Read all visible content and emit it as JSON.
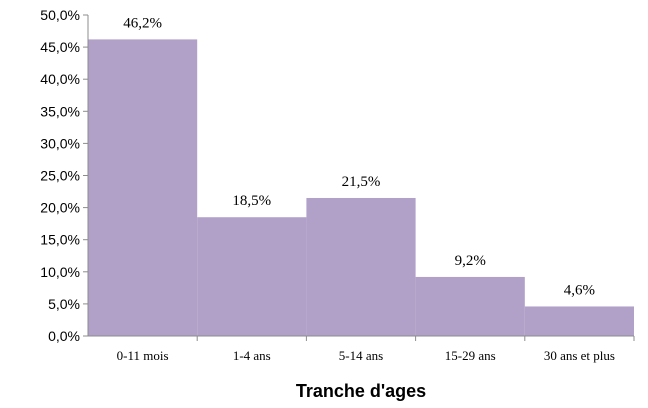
{
  "chart_data": {
    "type": "bar",
    "categories": [
      "0-11 mois",
      "1-4 ans",
      "5-14 ans",
      "15-29 ans",
      "30 ans et plus"
    ],
    "values": [
      46.2,
      18.5,
      21.5,
      9.2,
      4.6
    ],
    "data_labels": [
      "46,2%",
      "18,5%",
      "21,5%",
      "9,2%",
      "4,6%"
    ],
    "xlabel": "Tranche d'ages",
    "ylabel": "",
    "ylim": [
      0,
      50
    ],
    "yticks": [
      "0,0%",
      "5,0%",
      "10,0%",
      "15,0%",
      "20,0%",
      "25,0%",
      "30,0%",
      "35,0%",
      "40,0%",
      "45,0%",
      "50,0%"
    ],
    "bar_color": "#b1a0c7",
    "grid": false,
    "legend": "none"
  }
}
